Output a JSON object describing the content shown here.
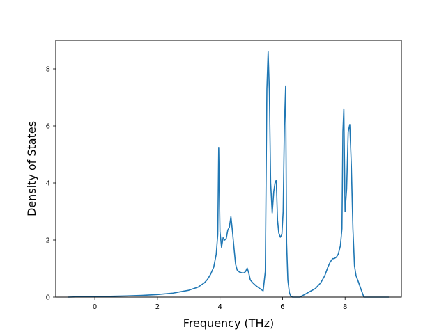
{
  "chart_data": {
    "type": "line",
    "title": "",
    "xlabel": "Frequency (THz)",
    "ylabel": "Density of States",
    "xlim": [
      -1.25,
      9.8
    ],
    "ylim": [
      0,
      9.0
    ],
    "xticks": [
      0,
      2,
      4,
      6,
      8
    ],
    "yticks": [
      0,
      2,
      4,
      6,
      8
    ],
    "grid": false,
    "legend": "none",
    "colors": {
      "line": "#1f77b4",
      "axes": "#000000",
      "background": "#ffffff"
    },
    "series": [
      {
        "x": [
          -0.85,
          -0.5,
          0.0,
          0.5,
          1.0,
          1.5,
          2.0,
          2.5,
          3.0,
          3.3,
          3.5,
          3.6,
          3.7,
          3.8,
          3.88,
          3.93,
          3.96,
          4.0,
          4.05,
          4.1,
          4.15,
          4.2,
          4.25,
          4.3,
          4.35,
          4.4,
          4.45,
          4.5,
          4.55,
          4.62,
          4.7,
          4.77,
          4.82,
          4.87,
          4.92,
          4.97,
          5.05,
          5.15,
          5.25,
          5.38,
          5.45,
          5.5,
          5.54,
          5.58,
          5.62,
          5.67,
          5.72,
          5.76,
          5.8,
          5.84,
          5.88,
          5.93,
          5.98,
          6.02,
          6.06,
          6.1,
          6.13,
          6.17,
          6.22,
          6.27,
          6.32,
          6.42,
          6.55,
          6.72,
          6.85,
          7.05,
          7.22,
          7.35,
          7.45,
          7.52,
          7.6,
          7.65,
          7.72,
          7.78,
          7.85,
          7.9,
          7.93,
          7.96,
          8.0,
          8.05,
          8.1,
          8.15,
          8.2,
          8.25,
          8.3,
          8.35,
          8.42,
          8.5,
          8.6,
          8.7,
          9.4
        ],
        "y": [
          0.0,
          0.01,
          0.02,
          0.03,
          0.04,
          0.06,
          0.09,
          0.14,
          0.24,
          0.35,
          0.5,
          0.62,
          0.8,
          1.05,
          1.5,
          2.2,
          5.25,
          2.3,
          1.75,
          2.08,
          2.0,
          2.05,
          2.35,
          2.45,
          2.82,
          2.3,
          1.7,
          1.15,
          0.95,
          0.88,
          0.85,
          0.85,
          0.9,
          1.02,
          0.85,
          0.6,
          0.5,
          0.4,
          0.32,
          0.22,
          0.9,
          7.3,
          8.6,
          7.2,
          4.0,
          2.95,
          3.7,
          4.0,
          4.1,
          2.7,
          2.25,
          2.1,
          2.2,
          3.0,
          6.0,
          7.4,
          1.9,
          0.6,
          0.15,
          0.02,
          0.0,
          0.0,
          0.0,
          0.1,
          0.18,
          0.3,
          0.5,
          0.75,
          1.05,
          1.22,
          1.35,
          1.35,
          1.4,
          1.5,
          1.8,
          2.4,
          5.8,
          6.6,
          3.0,
          3.8,
          5.8,
          6.05,
          4.6,
          2.4,
          1.1,
          0.75,
          0.55,
          0.3,
          0.0,
          0.0,
          0.0
        ]
      }
    ]
  }
}
